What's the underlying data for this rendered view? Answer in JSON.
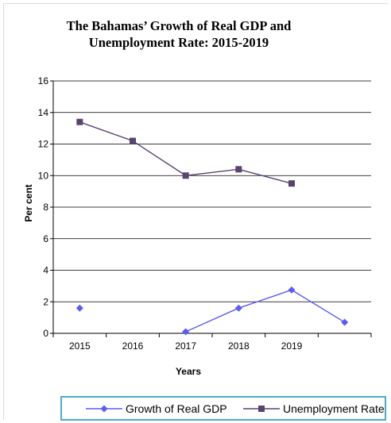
{
  "chart_data": {
    "type": "line",
    "title": "The Bahamas’ Growth of Real GDP and Unemployment Rate: 2015-2019",
    "title_lines": [
      "The Bahamas’ Growth of Real GDP and",
      "Unemployment Rate: 2015-2019"
    ],
    "xlabel": "Years",
    "ylabel": "Per cent",
    "categories": [
      "2015",
      "2016",
      "2017",
      "2018",
      "2019",
      ""
    ],
    "ylim": [
      0,
      16
    ],
    "yticks": [
      "0",
      "2",
      "4",
      "6",
      "8",
      "10",
      "12",
      "14",
      "16"
    ],
    "grid": true,
    "legend_position": "bottom",
    "series": [
      {
        "name": "Growth of Real GDP",
        "color": "#5b5bf5",
        "marker": "diamond",
        "values": [
          1.6,
          null,
          0.1,
          1.6,
          2.75,
          0.7
        ]
      },
      {
        "name": "Unemployment Rate",
        "color": "#5a4370",
        "marker": "square",
        "values": [
          13.4,
          12.2,
          10.0,
          10.4,
          9.5,
          null
        ]
      }
    ]
  }
}
